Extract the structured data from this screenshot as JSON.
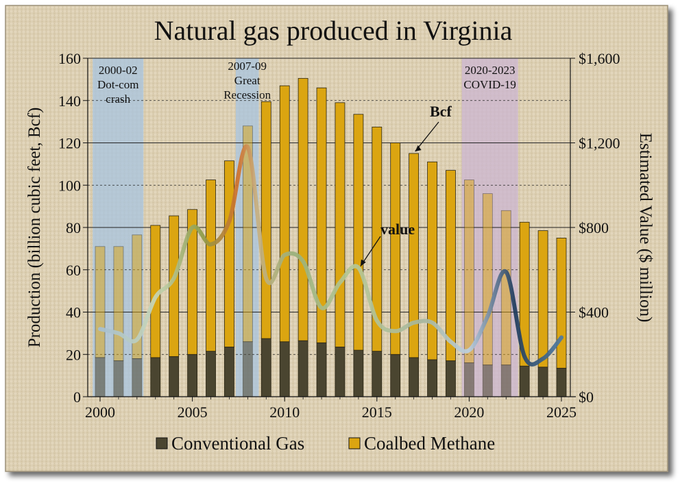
{
  "chart_data": {
    "type": "bar",
    "title": "Natural gas produced in Virginia",
    "ylabel": "Production (billion cubic feet, Bcf)",
    "y2label": "Estimated Value ($ million)",
    "ylim": [
      0,
      160
    ],
    "y2lim": [
      0,
      1600
    ],
    "xlim": [
      2000,
      2025
    ],
    "x_ticks": [
      "2000",
      "2005",
      "2010",
      "2015",
      "2020",
      "2025"
    ],
    "y_ticks": [
      "0",
      "20",
      "40",
      "60",
      "80",
      "100",
      "120",
      "140",
      "160"
    ],
    "y2_ticks": [
      "$0",
      "$400",
      "$800",
      "$1,200",
      "$1,600"
    ],
    "stacked": true,
    "grid": true,
    "legend_position": "bottom",
    "years": [
      2000,
      2001,
      2002,
      2003,
      2004,
      2005,
      2006,
      2007,
      2008,
      2009,
      2010,
      2011,
      2012,
      2013,
      2014,
      2015,
      2016,
      2017,
      2018,
      2019,
      2020,
      2021,
      2022,
      2023,
      2024,
      2025
    ],
    "series": [
      {
        "name": "Conventional Gas",
        "color": "#4a4530",
        "values": [
          18.5,
          17,
          18,
          18.5,
          19,
          20,
          21.5,
          23.5,
          26,
          27.5,
          26,
          26.5,
          25.5,
          23.5,
          22,
          21.5,
          20,
          18.5,
          17.5,
          17,
          16,
          15,
          15,
          14.5,
          14,
          13.5
        ]
      },
      {
        "name": "Coalbed Methane",
        "color": "#dba511",
        "values": [
          52.5,
          54,
          58.5,
          62.5,
          66.5,
          68.5,
          81,
          88,
          102,
          112,
          121,
          124,
          120.5,
          115.5,
          111.5,
          106,
          100,
          96.5,
          93.5,
          90,
          86.5,
          81,
          73,
          68,
          64.5,
          61.5
        ]
      }
    ],
    "value_line": {
      "name": "value",
      "axis": "right",
      "unit": "$ million",
      "values": [
        320,
        300,
        270,
        470,
        560,
        800,
        720,
        830,
        1180,
        560,
        670,
        640,
        420,
        540,
        610,
        360,
        310,
        350,
        350,
        260,
        220,
        380,
        590,
        190,
        180,
        280
      ]
    },
    "annotations": [
      {
        "label": "Bcf",
        "target_year": 2017
      },
      {
        "label": "value",
        "target_year": 2014
      }
    ],
    "shaded_periods": [
      {
        "label_line1": "2000-02",
        "label_line2": "Dot-com",
        "label_line3": "crash",
        "start": 1999.6,
        "end": 2002.35,
        "color": "#a7c4e0"
      },
      {
        "label_line1": "2007-09",
        "label_line2": "Great",
        "label_line3": "Recession",
        "start": 2007.35,
        "end": 2008.6,
        "color": "#a7c4e0"
      },
      {
        "label_line1": "2020-2023",
        "label_line2": "COVID-19",
        "label_line3": "",
        "start": 2019.6,
        "end": 2022.65,
        "color": "#cbb6d2"
      }
    ]
  }
}
